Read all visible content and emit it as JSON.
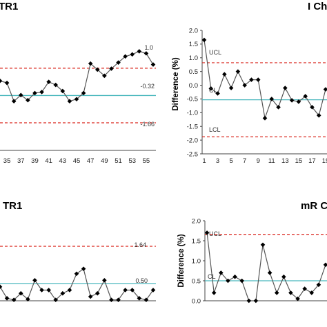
{
  "chart_data": [
    {
      "type": "line",
      "title": "TR1",
      "ylabel": "",
      "x": [
        34,
        35,
        36,
        37,
        38,
        39,
        40,
        41,
        42,
        43,
        44,
        45,
        46,
        47,
        48,
        49,
        50,
        51,
        52,
        53,
        54,
        55,
        56
      ],
      "series": [
        {
          "values": [
            0.4,
            0.3,
            -0.6,
            -0.3,
            -0.55,
            -0.2,
            -0.15,
            0.35,
            0.2,
            -0.1,
            -0.6,
            -0.5,
            -0.2,
            1.25,
            0.95,
            0.65,
            1.0,
            1.3,
            1.6,
            1.7,
            1.85,
            1.75,
            1.2
          ]
        }
      ],
      "x_tick_labels": [
        "35",
        "37",
        "39",
        "41",
        "43",
        "45",
        "47",
        "49",
        "51",
        "53",
        "55"
      ],
      "limit_labels": {
        "ucl": "1.0",
        "cl": "-0.32",
        "lcl": "-1.66"
      },
      "limits": {
        "ucl": 1.02,
        "cl": -0.32,
        "lcl": -1.66
      }
    },
    {
      "type": "line",
      "title": "I Ch",
      "ylabel": "Difference (%)",
      "ylim": [
        -2.5,
        2.0
      ],
      "y_ticks": [
        "2.0",
        "1.5",
        "1.0",
        "0.5",
        "0.0",
        "-0.5",
        "-1.0",
        "-1.5",
        "-2.0",
        "-2.5"
      ],
      "x_tick_labels": [
        "1",
        "3",
        "5",
        "7",
        "9",
        "11",
        "13",
        "15",
        "17",
        "19"
      ],
      "x": [
        1,
        2,
        3,
        4,
        5,
        6,
        7,
        8,
        9,
        10,
        11,
        12,
        13,
        14,
        15,
        16,
        17,
        18,
        19
      ],
      "series": [
        {
          "values": [
            1.65,
            -0.12,
            -0.3,
            0.4,
            -0.1,
            0.5,
            0.0,
            0.2,
            0.2,
            -1.2,
            -0.5,
            -0.8,
            -0.1,
            -0.55,
            -0.6,
            -0.4,
            -0.8,
            -1.1,
            -0.15
          ]
        }
      ],
      "limit_labels": {
        "ucl": "UCL",
        "cl": "CL",
        "lcl": "LCL"
      },
      "limits": {
        "ucl": 0.82,
        "cl": -0.53,
        "lcl": -1.88
      }
    },
    {
      "type": "line",
      "title": "TR1",
      "ylabel": "",
      "x": [
        34,
        35,
        36,
        37,
        38,
        39,
        40,
        41,
        42,
        43,
        44,
        45,
        46,
        47,
        48,
        49,
        50,
        51,
        52,
        53,
        54,
        55,
        56
      ],
      "series": [
        {
          "values": [
            0.4,
            0.05,
            0.0,
            0.2,
            0.02,
            0.6,
            0.3,
            0.3,
            0.0,
            0.2,
            0.3,
            0.8,
            0.95,
            0.1,
            0.2,
            0.6,
            0.0,
            0.0,
            0.3,
            0.3,
            0.05,
            0.0,
            0.3
          ]
        }
      ],
      "limit_labels": {
        "ucl": "1.64",
        "cl": "0.50"
      },
      "limits": {
        "ucl": 1.64,
        "cl": 0.5
      }
    },
    {
      "type": "line",
      "title": "mR C",
      "ylabel": "Difference (%)",
      "ylim": [
        0.0,
        2.0
      ],
      "y_ticks": [
        "2.0",
        "1.5",
        "1.0",
        "0.5",
        "0.0"
      ],
      "x": [
        2,
        3,
        4,
        5,
        6,
        7,
        8,
        9,
        10,
        11,
        12,
        13,
        14,
        15,
        16,
        17,
        18,
        19
      ],
      "series": [
        {
          "values": [
            1.7,
            0.2,
            0.7,
            0.5,
            0.6,
            0.5,
            0.0,
            0.0,
            1.4,
            0.7,
            0.2,
            0.6,
            0.2,
            0.05,
            0.3,
            0.2,
            0.4,
            0.9
          ]
        }
      ],
      "limit_labels": {
        "ucl": "UCL",
        "cl": "CL"
      },
      "limits": {
        "ucl": 1.66,
        "cl": 0.5
      }
    }
  ]
}
